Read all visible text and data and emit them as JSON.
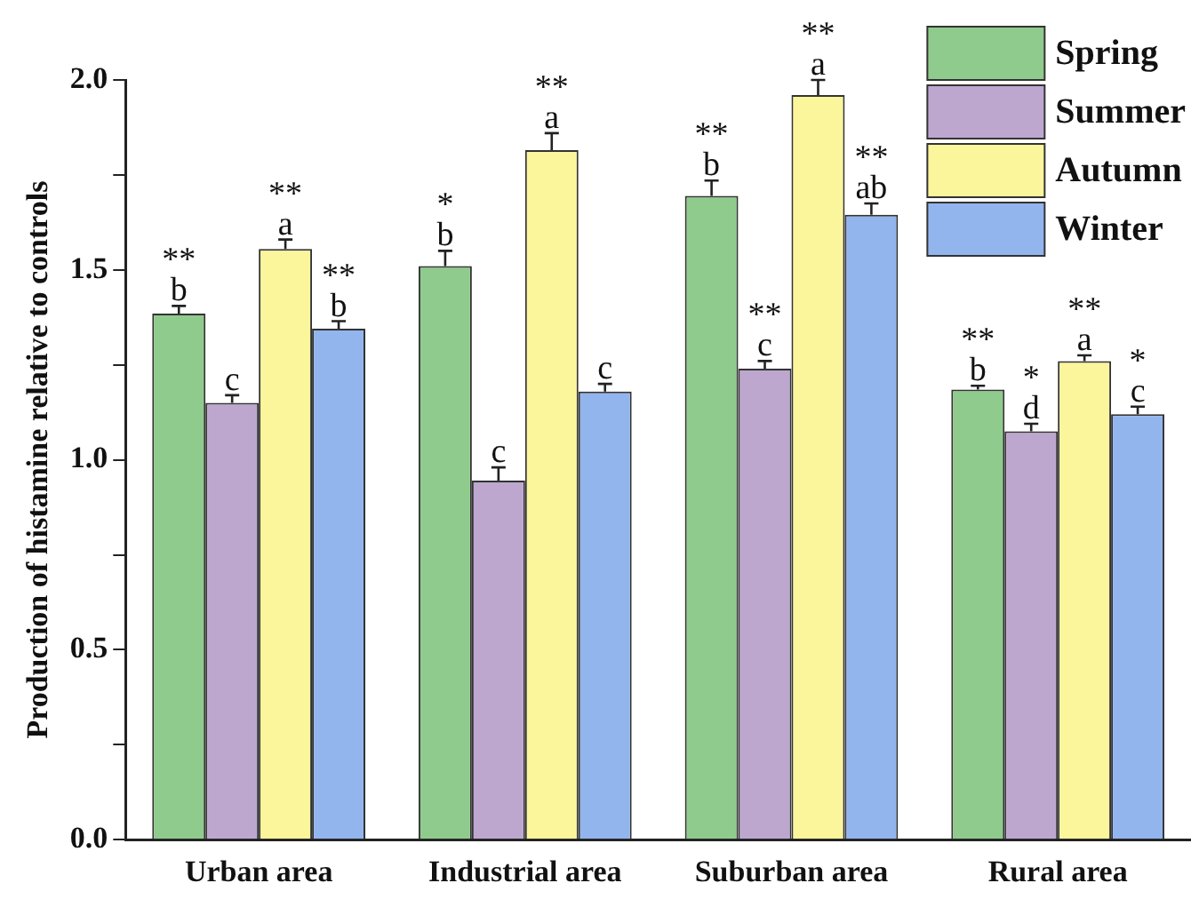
{
  "chart_data": {
    "type": "bar",
    "ylabel": "Production of histamine relative to controls",
    "categories": [
      "Urban area",
      "Industrial area",
      "Suburban area",
      "Rural area"
    ],
    "series": [
      {
        "name": "Spring",
        "color": "#8fcb8c",
        "values": [
          1.385,
          1.51,
          1.695,
          1.185
        ],
        "errors": [
          0.02,
          0.04,
          0.04,
          0.01
        ]
      },
      {
        "name": "Summer",
        "color": "#bda7cf",
        "values": [
          1.15,
          0.945,
          1.24,
          1.075
        ],
        "errors": [
          0.02,
          0.035,
          0.02,
          0.02
        ]
      },
      {
        "name": "Autumn",
        "color": "#fbf59b",
        "values": [
          1.555,
          1.815,
          1.96,
          1.26
        ],
        "errors": [
          0.025,
          0.045,
          0.04,
          0.015
        ]
      },
      {
        "name": "Winter",
        "color": "#92b5ee",
        "values": [
          1.345,
          1.18,
          1.645,
          1.12
        ],
        "errors": [
          0.02,
          0.02,
          0.03,
          0.02
        ]
      }
    ],
    "ylim": [
      0,
      2
    ],
    "yticks": [
      {
        "value": 0,
        "label": "0.0"
      },
      {
        "value": 0.25,
        "label": null
      },
      {
        "value": 0.5,
        "label": "0.5"
      },
      {
        "value": 0.75,
        "label": null
      },
      {
        "value": 1,
        "label": "1.0"
      },
      {
        "value": 1.25,
        "label": null
      },
      {
        "value": 1.5,
        "label": "1.5"
      },
      {
        "value": 1.75,
        "label": null
      },
      {
        "value": 2,
        "label": "2.0"
      }
    ],
    "grid": false,
    "legend": "top right",
    "annotations": [
      {
        "text": "b",
        "x": "Urban area",
        "y": 1.385
      },
      {
        "text": "**",
        "x": "Urban area",
        "y": 1.385
      },
      {
        "text": "c",
        "x": "Urban area",
        "y": 1.15
      },
      {
        "text": "a",
        "x": "Urban area",
        "y": 1.555
      },
      {
        "text": "**",
        "x": "Urban area",
        "y": 1.555
      },
      {
        "text": "b",
        "x": "Urban area",
        "y": 1.345
      },
      {
        "text": "**",
        "x": "Urban area",
        "y": 1.345
      },
      {
        "text": "b",
        "x": "Industrial area",
        "y": 1.51
      },
      {
        "text": "*",
        "x": "Industrial area",
        "y": 1.51
      },
      {
        "text": "c",
        "x": "Industrial area",
        "y": 0.945
      },
      {
        "text": "a",
        "x": "Industrial area",
        "y": 1.815
      },
      {
        "text": "**",
        "x": "Industrial area",
        "y": 1.815
      },
      {
        "text": "c",
        "x": "Industrial area",
        "y": 1.18
      },
      {
        "text": "b",
        "x": "Suburban area",
        "y": 1.695
      },
      {
        "text": "**",
        "x": "Suburban area",
        "y": 1.695
      },
      {
        "text": "c",
        "x": "Suburban area",
        "y": 1.24
      },
      {
        "text": "**",
        "x": "Suburban area",
        "y": 1.24
      },
      {
        "text": "a",
        "x": "Suburban area",
        "y": 1.96
      },
      {
        "text": "**",
        "x": "Suburban area",
        "y": 1.96
      },
      {
        "text": "ab",
        "x": "Suburban area",
        "y": 1.645
      },
      {
        "text": "**",
        "x": "Suburban area",
        "y": 1.645
      },
      {
        "text": "b",
        "x": "Rural area",
        "y": 1.185
      },
      {
        "text": "**",
        "x": "Rural area",
        "y": 1.185
      },
      {
        "text": "d",
        "x": "Rural area",
        "y": 1.075
      },
      {
        "text": "*",
        "x": "Rural area",
        "y": 1.075
      },
      {
        "text": "a",
        "x": "Rural area",
        "y": 1.26
      },
      {
        "text": "**",
        "x": "Rural area",
        "y": 1.26
      },
      {
        "text": "c",
        "x": "Rural area",
        "y": 1.12
      },
      {
        "text": "*",
        "x": "Rural area",
        "y": 1.12
      }
    ]
  }
}
